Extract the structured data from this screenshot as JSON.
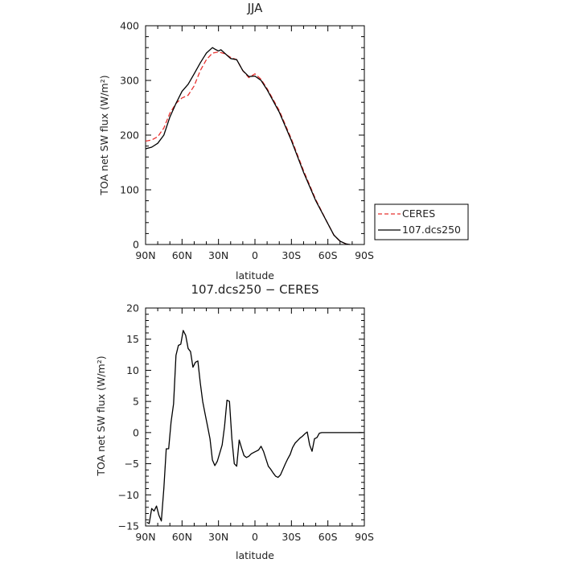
{
  "chart_data": [
    {
      "type": "line",
      "title": "JJA",
      "xlabel": "latitude",
      "ylabel": "TOA net SW flux (W/m²)",
      "xlim": [
        90,
        -90
      ],
      "ylim": [
        0,
        400
      ],
      "xticks": [
        90,
        60,
        30,
        0,
        -30,
        -60,
        -90
      ],
      "xtick_labels": [
        "90N",
        "60N",
        "30N",
        "0",
        "30S",
        "60S",
        "90S"
      ],
      "yticks": [
        0,
        100,
        200,
        300,
        400
      ],
      "ytick_labels": [
        "0",
        "100",
        "200",
        "300",
        "400"
      ],
      "legend_position": "right",
      "series": [
        {
          "name": "CERES",
          "color": "#e8312f",
          "dash": "dashed",
          "x": [
            90,
            85,
            80,
            75,
            70,
            65,
            60,
            55,
            50,
            45,
            40,
            35,
            30,
            25,
            20,
            15,
            10,
            5,
            0,
            -5,
            -10,
            -20,
            -30,
            -40,
            -50,
            -60,
            -65,
            -70,
            -75,
            -78
          ],
          "y": [
            189,
            191,
            197,
            213,
            240,
            258,
            268,
            273,
            290,
            318,
            338,
            350,
            352,
            349,
            342,
            338,
            318,
            305,
            312,
            302,
            285,
            245,
            193,
            135,
            82,
            38,
            17,
            6,
            1,
            0
          ]
        },
        {
          "name": "107.dcs250",
          "color": "#000000",
          "dash": "solid",
          "x": [
            90,
            85,
            80,
            75,
            70,
            65,
            60,
            55,
            50,
            45,
            40,
            35,
            32,
            30,
            28,
            25,
            20,
            15,
            10,
            5,
            0,
            -5,
            -10,
            -20,
            -30,
            -40,
            -50,
            -60,
            -65,
            -70,
            -75,
            -78
          ],
          "y": [
            175,
            178,
            185,
            200,
            233,
            258,
            280,
            293,
            312,
            332,
            350,
            360,
            356,
            354,
            356,
            350,
            340,
            338,
            318,
            307,
            308,
            300,
            283,
            242,
            190,
            132,
            80,
            38,
            17,
            6,
            1,
            0
          ]
        }
      ]
    },
    {
      "type": "line",
      "title": "107.dcs250 − CERES",
      "xlabel": "latitude",
      "ylabel": "TOA net SW flux (W/m²)",
      "xlim": [
        90,
        -90
      ],
      "ylim": [
        -15,
        20
      ],
      "xticks": [
        90,
        60,
        30,
        0,
        -30,
        -60,
        -90
      ],
      "xtick_labels": [
        "90N",
        "60N",
        "30N",
        "0",
        "30S",
        "60S",
        "90S"
      ],
      "yticks": [
        -15,
        -10,
        -5,
        0,
        5,
        10,
        15,
        20
      ],
      "ytick_labels": [
        "−15",
        "−10",
        "−5",
        "0",
        "5",
        "10",
        "15",
        "20"
      ],
      "series": [
        {
          "color": "#000000",
          "dash": "solid",
          "x": [
            89,
            87,
            85,
            83,
            81,
            79,
            77,
            75,
            73,
            71,
            69,
            67,
            65,
            63,
            61,
            59,
            57,
            55,
            53,
            51,
            49,
            47,
            45,
            43,
            41,
            39,
            37,
            35,
            33,
            31,
            29,
            27,
            25,
            23,
            21,
            19,
            17,
            15,
            13,
            11,
            9,
            7,
            5,
            3,
            1,
            -1,
            -3,
            -5,
            -7,
            -9,
            -11,
            -13,
            -15,
            -17,
            -19,
            -21,
            -23,
            -25,
            -27,
            -29,
            -31,
            -33,
            -35,
            -37,
            -39,
            -41,
            -43,
            -45,
            -47,
            -49,
            -51,
            -53,
            -55,
            -57,
            -59,
            -61,
            -63,
            -65,
            -67,
            -69,
            -71,
            -73,
            -75,
            -77,
            -79,
            -81,
            -83,
            -85,
            -87,
            -89
          ],
          "y": [
            -14.4,
            -14.6,
            -12.2,
            -12.6,
            -11.8,
            -13.3,
            -14.2,
            -9.0,
            -2.6,
            -2.6,
            1.7,
            4.6,
            12.4,
            14.0,
            14.2,
            16.4,
            15.6,
            13.5,
            13.0,
            10.5,
            11.3,
            11.5,
            8.0,
            5.0,
            3.0,
            1.0,
            -1.0,
            -4.4,
            -5.3,
            -4.6,
            -3.3,
            -2.0,
            1.0,
            5.2,
            5.0,
            -1.0,
            -5.0,
            -5.4,
            -1.2,
            -2.5,
            -3.7,
            -4.0,
            -3.8,
            -3.4,
            -3.2,
            -3.0,
            -2.8,
            -2.2,
            -3.0,
            -4.2,
            -5.4,
            -5.9,
            -6.5,
            -7.0,
            -7.2,
            -6.8,
            -5.9,
            -5.0,
            -4.2,
            -3.5,
            -2.4,
            -1.7,
            -1.3,
            -0.9,
            -0.6,
            -0.2,
            0.1,
            -2.0,
            -3.0,
            -1.0,
            -0.8,
            -0.1,
            0.0,
            0.0,
            0.0,
            0.0,
            0.0,
            0.0,
            0.0,
            0.0,
            0.0,
            0.0,
            0.0,
            0.0,
            0.0,
            0.0,
            0.0,
            0.0,
            0.0,
            0.0
          ]
        }
      ]
    }
  ]
}
